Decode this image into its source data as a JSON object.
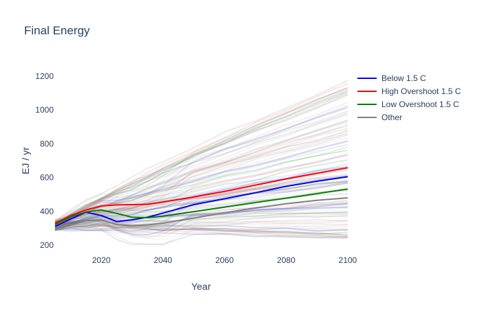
{
  "chart_data": {
    "type": "line",
    "title": "Final Energy",
    "xlabel": "Year",
    "ylabel": "EJ / yr",
    "xlim": [
      2005,
      2100
    ],
    "ylim": [
      200,
      1200
    ],
    "x_ticks": [
      2020,
      2040,
      2060,
      2080,
      2100
    ],
    "y_ticks": [
      200,
      400,
      600,
      800,
      1000,
      1200
    ],
    "grid": false,
    "legend_position": "top-right",
    "series": [
      {
        "name": "Below 1.5 C",
        "color": "#0000ff",
        "x": [
          2005,
          2010,
          2015,
          2020,
          2025,
          2030,
          2035,
          2040,
          2050,
          2060,
          2070,
          2080,
          2090,
          2100
        ],
        "values": [
          310,
          355,
          395,
          375,
          340,
          350,
          365,
          390,
          440,
          475,
          510,
          548,
          578,
          605
        ]
      },
      {
        "name": "High Overshoot 1.5 C",
        "color": "#ff0000",
        "x": [
          2005,
          2010,
          2015,
          2020,
          2025,
          2030,
          2035,
          2040,
          2050,
          2060,
          2070,
          2080,
          2090,
          2100
        ],
        "values": [
          330,
          375,
          408,
          432,
          438,
          440,
          442,
          455,
          485,
          518,
          555,
          592,
          625,
          658
        ]
      },
      {
        "name": "Low Overshoot 1.5 C",
        "color": "#008000",
        "x": [
          2005,
          2010,
          2015,
          2020,
          2025,
          2030,
          2035,
          2040,
          2050,
          2060,
          2070,
          2080,
          2090,
          2100
        ],
        "values": [
          322,
          368,
          396,
          408,
          388,
          365,
          362,
          372,
          398,
          425,
          452,
          478,
          505,
          532
        ]
      },
      {
        "name": "Other",
        "color": "#808080",
        "x": [
          2005,
          2010,
          2015,
          2020,
          2025,
          2030,
          2035,
          2040,
          2050,
          2060,
          2070,
          2080,
          2090,
          2100
        ],
        "values": [
          290,
          318,
          345,
          350,
          322,
          315,
          320,
          330,
          360,
          392,
          420,
          445,
          465,
          480
        ]
      }
    ]
  }
}
